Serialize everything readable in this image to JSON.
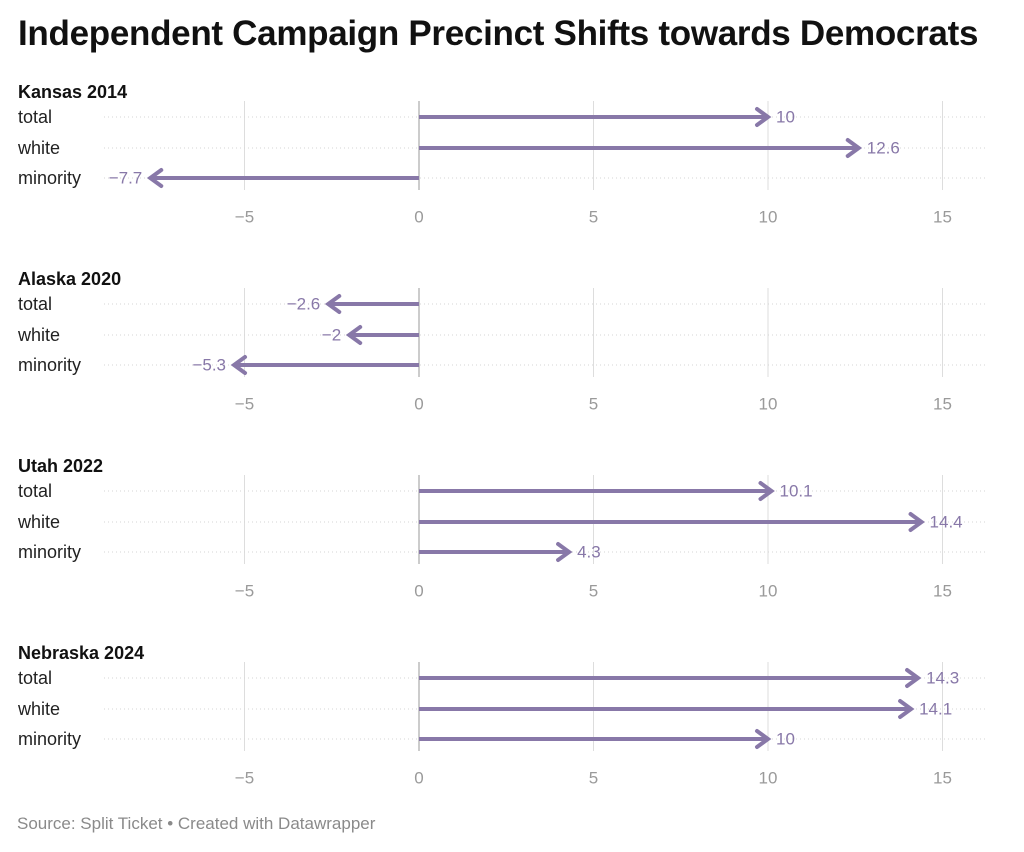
{
  "title": "Independent Campaign Precinct Shifts towards Democrats",
  "source": "Source: Split Ticket • Created with Datawrapper",
  "colors": {
    "arrow": "#8878a8",
    "value_text": "#8878a8",
    "grid": "#dddddd",
    "zero_line": "#bbbbbb",
    "tick_text": "#9a9a9a"
  },
  "chart_data": [
    {
      "type": "arrow",
      "title": "Kansas 2014",
      "categories": [
        "total",
        "white",
        "minority"
      ],
      "values": [
        10,
        12.6,
        -7.7
      ],
      "labels": [
        "10",
        "12.6",
        "−7.7"
      ],
      "xticks": [
        -5,
        0,
        5,
        10,
        15
      ],
      "xtick_labels": [
        "−5",
        "0",
        "5",
        "10",
        "15"
      ],
      "xlim": [
        -9.5,
        16.2
      ],
      "grid": true
    },
    {
      "type": "arrow",
      "title": "Alaska 2020",
      "categories": [
        "total",
        "white",
        "minority"
      ],
      "values": [
        -2.6,
        -2,
        -5.3
      ],
      "labels": [
        "−2.6",
        "−2",
        "−5.3"
      ],
      "xticks": [
        -5,
        0,
        5,
        10,
        15
      ],
      "xtick_labels": [
        "−5",
        "0",
        "5",
        "10",
        "15"
      ],
      "xlim": [
        -9.5,
        16.2
      ],
      "grid": true
    },
    {
      "type": "arrow",
      "title": "Utah 2022",
      "categories": [
        "total",
        "white",
        "minority"
      ],
      "values": [
        10.1,
        14.4,
        4.3
      ],
      "labels": [
        "10.1",
        "14.4",
        "4.3"
      ],
      "xticks": [
        -5,
        0,
        5,
        10,
        15
      ],
      "xtick_labels": [
        "−5",
        "0",
        "5",
        "10",
        "15"
      ],
      "xlim": [
        -9.5,
        16.2
      ],
      "grid": true
    },
    {
      "type": "arrow",
      "title": "Nebraska 2024",
      "categories": [
        "total",
        "white",
        "minority"
      ],
      "values": [
        14.3,
        14.1,
        10
      ],
      "labels": [
        "14.3",
        "14.1",
        "10"
      ],
      "xticks": [
        -5,
        0,
        5,
        10,
        15
      ],
      "xtick_labels": [
        "−5",
        "0",
        "5",
        "10",
        "15"
      ],
      "xlim": [
        -9.5,
        16.2
      ],
      "grid": true
    }
  ]
}
